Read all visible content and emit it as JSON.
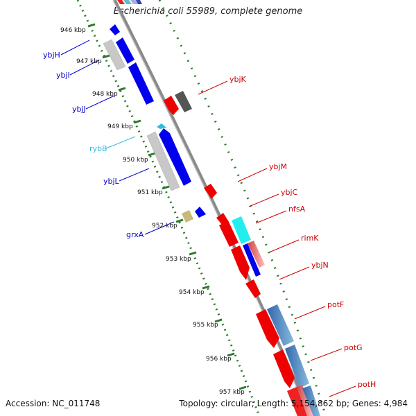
{
  "title": "Escherichia coli 55989, complete genome",
  "accession_label": "Accession: NC_011748",
  "topology_label": "Topology: circular; Length: 5,154,862 bp; Genes: 4,984",
  "colors": {
    "forward_gene": "#0000ee",
    "reverse_gene": "#ee0000",
    "rna": "#33ccee",
    "pseudo": "#c8c8c8",
    "dark_gene": "#555555",
    "misc": "#c8b87a",
    "backbone": "#8a8a8a",
    "tick": "#2a7a2a"
  },
  "ticks": [
    {
      "label": "946 kbp"
    },
    {
      "label": "947 kbp"
    },
    {
      "label": "948 kbp"
    },
    {
      "label": "949 kbp"
    },
    {
      "label": "950 kbp"
    },
    {
      "label": "951 kbp"
    },
    {
      "label": "952 kbp"
    },
    {
      "label": "953 kbp"
    },
    {
      "label": "954 kbp"
    },
    {
      "label": "955 kbp"
    },
    {
      "label": "956 kbp"
    },
    {
      "label": "957 kbp"
    }
  ],
  "left_labels": [
    {
      "name": "ybjH",
      "color": "#0000cc"
    },
    {
      "name": "ybjI",
      "color": "#0000cc"
    },
    {
      "name": "ybjJ",
      "color": "#0000cc"
    },
    {
      "name": "rybB",
      "color": "#33bbdd"
    },
    {
      "name": "ybjL",
      "color": "#0000cc"
    },
    {
      "name": "grxA",
      "color": "#0000cc"
    }
  ],
  "right_labels": [
    {
      "name": "ybjK",
      "color": "#cc0000"
    },
    {
      "name": "ybjM",
      "color": "#cc0000"
    },
    {
      "name": "ybjC",
      "color": "#cc0000"
    },
    {
      "name": "nfsA",
      "color": "#cc0000"
    },
    {
      "name": "rimK",
      "color": "#cc0000"
    },
    {
      "name": "ybjN",
      "color": "#cc0000"
    },
    {
      "name": "potF",
      "color": "#cc0000"
    },
    {
      "name": "potG",
      "color": "#cc0000"
    },
    {
      "name": "potH",
      "color": "#cc0000"
    }
  ]
}
